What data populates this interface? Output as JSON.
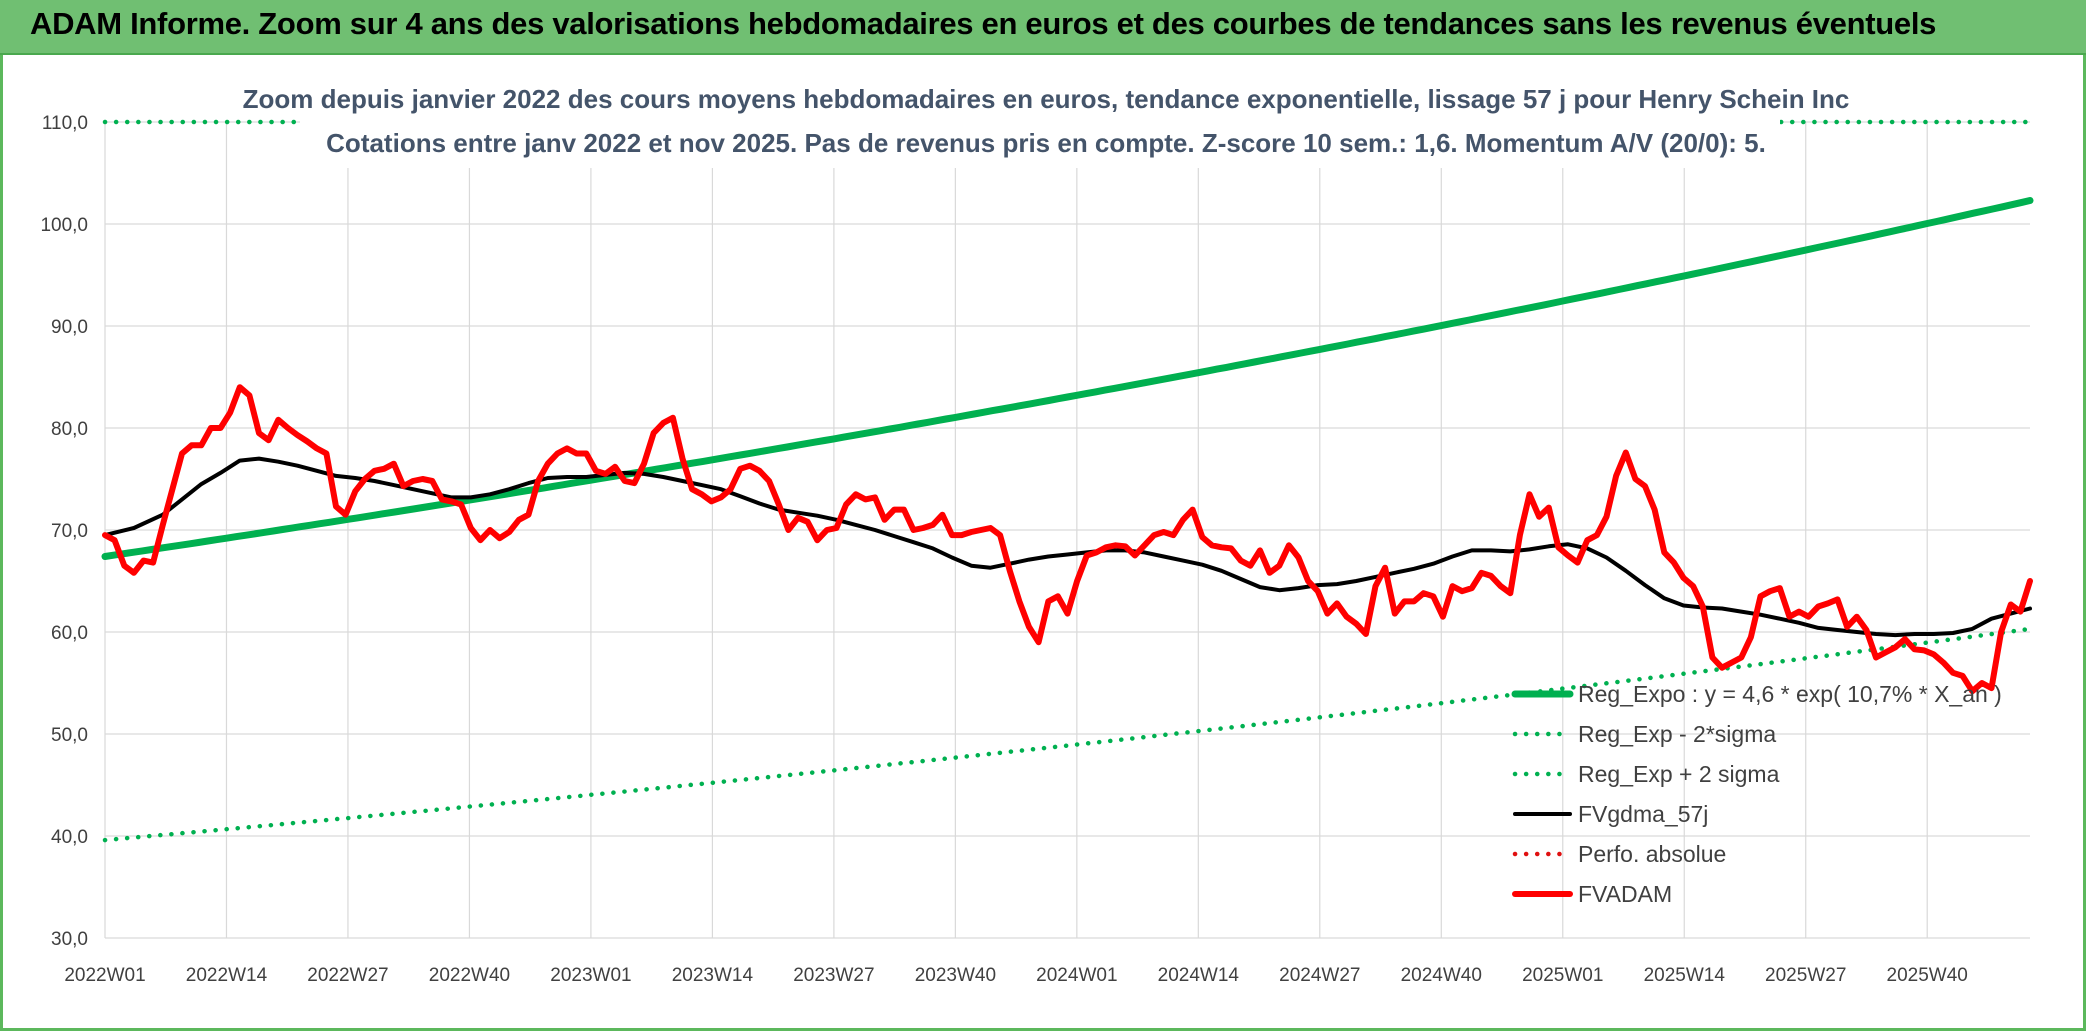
{
  "banner": {
    "title": "ADAM Informe. Zoom sur 4 ans des valorisations hebdomadaires en euros et des courbes de tendances sans les revenus éventuels"
  },
  "colors": {
    "banner": "#70bf72",
    "regExpo": "#00b050",
    "fvgdma": "#000000",
    "fvadam": "#ff0000",
    "perfo": "#e01010",
    "title": "#44546a",
    "grid": "#d9d9d9"
  },
  "chart_data": {
    "type": "line",
    "title": "Zoom depuis janvier 2022 des cours moyens hebdomadaires en euros, tendance exponentielle, lissage 57 j pour Henry Schein Inc",
    "subtitle": "Cotations entre janv 2022 et nov 2025. Pas de revenus pris en compte. Z-score 10 sem.: 1,6. Momentum A/V (20/0): 5.",
    "xlabel": "",
    "ylabel": "",
    "ylim": [
      30,
      110
    ],
    "y_ticks": [
      "30,0",
      "40,0",
      "50,0",
      "60,0",
      "70,0",
      "80,0",
      "90,0",
      "100,0",
      "110,0"
    ],
    "x_ticks": [
      "2022W01",
      "2022W14",
      "2022W27",
      "2022W40",
      "2023W01",
      "2023W14",
      "2023W27",
      "2023W40",
      "2024W01",
      "2024W14",
      "2024W27",
      "2024W40",
      "2025W01",
      "2025W14",
      "2025W27",
      "2025W40"
    ],
    "x_range_weeks": [
      0,
      206
    ],
    "grid": true,
    "legend_position": "bottom-right",
    "series": [
      {
        "name": "Reg_Expo : y = 4,6 * exp( 10,7% *  X_an )",
        "style": "solid-thick",
        "color": "#00b050",
        "kind": "exp",
        "start": 67.4,
        "end": 102.3
      },
      {
        "name": "Reg_Exp - 2*sigma",
        "style": "dotted",
        "color": "#00b050",
        "kind": "exp",
        "start": 39.6,
        "end": 60.3
      },
      {
        "name": "Reg_Exp + 2 sigma",
        "style": "dotted",
        "color": "#00b050",
        "kind": "exp",
        "start": 110.0,
        "end": 110.0
      },
      {
        "name": "FVgdma_57j",
        "style": "solid",
        "color": "#000000",
        "kind": "points",
        "points": [
          [
            0,
            69.5
          ],
          [
            3,
            70.2
          ],
          [
            6,
            71.5
          ],
          [
            8,
            73.0
          ],
          [
            10,
            74.5
          ],
          [
            12,
            75.6
          ],
          [
            14,
            76.8
          ],
          [
            16,
            77.0
          ],
          [
            18,
            76.7
          ],
          [
            20,
            76.3
          ],
          [
            22,
            75.8
          ],
          [
            24,
            75.3
          ],
          [
            26,
            75.1
          ],
          [
            28,
            74.8
          ],
          [
            30,
            74.4
          ],
          [
            32,
            74.0
          ],
          [
            34,
            73.6
          ],
          [
            36,
            73.2
          ],
          [
            38,
            73.2
          ],
          [
            40,
            73.5
          ],
          [
            42,
            74.0
          ],
          [
            44,
            74.6
          ],
          [
            46,
            75.1
          ],
          [
            48,
            75.2
          ],
          [
            50,
            75.2
          ],
          [
            52,
            75.4
          ],
          [
            54,
            75.6
          ],
          [
            56,
            75.5
          ],
          [
            58,
            75.2
          ],
          [
            60,
            74.8
          ],
          [
            62,
            74.4
          ],
          [
            64,
            74.0
          ],
          [
            66,
            73.3
          ],
          [
            68,
            72.6
          ],
          [
            70,
            72.0
          ],
          [
            72,
            71.7
          ],
          [
            74,
            71.4
          ],
          [
            76,
            71.0
          ],
          [
            78,
            70.5
          ],
          [
            80,
            70.0
          ],
          [
            82,
            69.4
          ],
          [
            84,
            68.8
          ],
          [
            86,
            68.2
          ],
          [
            88,
            67.3
          ],
          [
            90,
            66.5
          ],
          [
            92,
            66.3
          ],
          [
            94,
            66.7
          ],
          [
            96,
            67.1
          ],
          [
            98,
            67.4
          ],
          [
            100,
            67.6
          ],
          [
            102,
            67.8
          ],
          [
            104,
            68.0
          ],
          [
            106,
            68.0
          ],
          [
            108,
            67.8
          ],
          [
            110,
            67.4
          ],
          [
            112,
            67.0
          ],
          [
            114,
            66.6
          ],
          [
            116,
            66.0
          ],
          [
            118,
            65.2
          ],
          [
            120,
            64.4
          ],
          [
            122,
            64.1
          ],
          [
            124,
            64.3
          ],
          [
            126,
            64.6
          ],
          [
            128,
            64.7
          ],
          [
            130,
            65.0
          ],
          [
            132,
            65.4
          ],
          [
            134,
            65.8
          ],
          [
            136,
            66.2
          ],
          [
            138,
            66.7
          ],
          [
            140,
            67.4
          ],
          [
            142,
            68.0
          ],
          [
            144,
            68.0
          ],
          [
            146,
            67.9
          ],
          [
            148,
            68.1
          ],
          [
            150,
            68.4
          ],
          [
            152,
            68.6
          ],
          [
            154,
            68.2
          ],
          [
            156,
            67.3
          ],
          [
            158,
            66.0
          ],
          [
            160,
            64.6
          ],
          [
            162,
            63.3
          ],
          [
            164,
            62.6
          ],
          [
            166,
            62.4
          ],
          [
            168,
            62.3
          ],
          [
            170,
            62.0
          ],
          [
            172,
            61.7
          ],
          [
            174,
            61.3
          ],
          [
            176,
            60.9
          ],
          [
            178,
            60.4
          ],
          [
            180,
            60.2
          ],
          [
            182,
            60.0
          ],
          [
            184,
            59.8
          ],
          [
            186,
            59.7
          ],
          [
            188,
            59.8
          ],
          [
            190,
            59.8
          ],
          [
            192,
            59.9
          ],
          [
            194,
            60.3
          ],
          [
            196,
            61.3
          ],
          [
            198,
            61.8
          ],
          [
            200,
            62.3
          ]
        ]
      },
      {
        "name": "Perfo. absolue",
        "style": "dotted",
        "color": "#e01010",
        "kind": "none"
      },
      {
        "name": "FVADAM",
        "style": "solid-thick",
        "color": "#ff0000",
        "kind": "points",
        "points": [
          [
            0,
            69.5
          ],
          [
            1,
            69.0
          ],
          [
            2,
            66.5
          ],
          [
            3,
            65.8
          ],
          [
            4,
            67.0
          ],
          [
            5,
            66.8
          ],
          [
            6,
            70.5
          ],
          [
            7,
            74.0
          ],
          [
            8,
            77.5
          ],
          [
            9,
            78.3
          ],
          [
            10,
            78.3
          ],
          [
            11,
            80.0
          ],
          [
            12,
            80.0
          ],
          [
            13,
            81.5
          ],
          [
            14,
            84.0
          ],
          [
            15,
            83.2
          ],
          [
            16,
            79.5
          ],
          [
            17,
            78.8
          ],
          [
            18,
            80.8
          ],
          [
            19,
            80.0
          ],
          [
            20,
            79.3
          ],
          [
            21,
            78.7
          ],
          [
            22,
            78.0
          ],
          [
            23,
            77.5
          ],
          [
            24,
            72.3
          ],
          [
            25,
            71.5
          ],
          [
            26,
            73.8
          ],
          [
            27,
            75.0
          ],
          [
            28,
            75.8
          ],
          [
            29,
            76.0
          ],
          [
            30,
            76.5
          ],
          [
            31,
            74.3
          ],
          [
            32,
            74.8
          ],
          [
            33,
            75.0
          ],
          [
            34,
            74.8
          ],
          [
            35,
            73.0
          ],
          [
            36,
            72.8
          ],
          [
            37,
            72.5
          ],
          [
            38,
            70.2
          ],
          [
            39,
            69.0
          ],
          [
            40,
            70.0
          ],
          [
            41,
            69.2
          ],
          [
            42,
            69.8
          ],
          [
            43,
            71.0
          ],
          [
            44,
            71.5
          ],
          [
            45,
            74.8
          ],
          [
            46,
            76.5
          ],
          [
            47,
            77.5
          ],
          [
            48,
            78.0
          ],
          [
            49,
            77.5
          ],
          [
            50,
            77.5
          ],
          [
            51,
            75.8
          ],
          [
            52,
            75.5
          ],
          [
            53,
            76.2
          ],
          [
            54,
            74.8
          ],
          [
            55,
            74.6
          ],
          [
            56,
            76.5
          ],
          [
            57,
            79.5
          ],
          [
            58,
            80.5
          ],
          [
            59,
            81.0
          ],
          [
            60,
            77.0
          ],
          [
            61,
            74.0
          ],
          [
            62,
            73.5
          ],
          [
            63,
            72.8
          ],
          [
            64,
            73.2
          ],
          [
            65,
            74.0
          ],
          [
            66,
            76.0
          ],
          [
            67,
            76.3
          ],
          [
            68,
            75.8
          ],
          [
            69,
            74.8
          ],
          [
            70,
            72.5
          ],
          [
            71,
            70.0
          ],
          [
            72,
            71.2
          ],
          [
            73,
            70.8
          ],
          [
            74,
            69.0
          ],
          [
            75,
            70.0
          ],
          [
            76,
            70.2
          ],
          [
            77,
            72.5
          ],
          [
            78,
            73.5
          ],
          [
            79,
            73.0
          ],
          [
            80,
            73.2
          ],
          [
            81,
            71.0
          ],
          [
            82,
            72.0
          ],
          [
            83,
            72.0
          ],
          [
            84,
            70.0
          ],
          [
            85,
            70.2
          ],
          [
            86,
            70.5
          ],
          [
            87,
            71.5
          ],
          [
            88,
            69.5
          ],
          [
            89,
            69.5
          ],
          [
            90,
            69.8
          ],
          [
            91,
            70.0
          ],
          [
            92,
            70.2
          ],
          [
            93,
            69.5
          ],
          [
            94,
            66.0
          ],
          [
            95,
            63.0
          ],
          [
            96,
            60.5
          ],
          [
            97,
            59.0
          ],
          [
            98,
            63.0
          ],
          [
            99,
            63.5
          ],
          [
            100,
            61.8
          ],
          [
            101,
            65.0
          ],
          [
            102,
            67.5
          ],
          [
            103,
            67.8
          ],
          [
            104,
            68.3
          ],
          [
            105,
            68.5
          ],
          [
            106,
            68.4
          ],
          [
            107,
            67.5
          ],
          [
            108,
            68.5
          ],
          [
            109,
            69.5
          ],
          [
            110,
            69.8
          ],
          [
            111,
            69.5
          ],
          [
            112,
            71.0
          ],
          [
            113,
            72.0
          ],
          [
            114,
            69.3
          ],
          [
            115,
            68.5
          ],
          [
            116,
            68.3
          ],
          [
            117,
            68.2
          ],
          [
            118,
            67.0
          ],
          [
            119,
            66.5
          ],
          [
            120,
            68.0
          ],
          [
            121,
            65.8
          ],
          [
            122,
            66.5
          ],
          [
            123,
            68.5
          ],
          [
            124,
            67.3
          ],
          [
            125,
            65.0
          ],
          [
            126,
            64.0
          ],
          [
            127,
            61.8
          ],
          [
            128,
            62.8
          ],
          [
            129,
            61.5
          ],
          [
            130,
            60.8
          ],
          [
            131,
            59.8
          ],
          [
            132,
            64.5
          ],
          [
            133,
            66.3
          ],
          [
            134,
            61.8
          ],
          [
            135,
            63.0
          ],
          [
            136,
            63.0
          ],
          [
            137,
            63.8
          ],
          [
            138,
            63.5
          ],
          [
            139,
            61.5
          ],
          [
            140,
            64.5
          ],
          [
            141,
            64.0
          ],
          [
            142,
            64.3
          ],
          [
            143,
            65.8
          ],
          [
            144,
            65.5
          ],
          [
            145,
            64.5
          ],
          [
            146,
            63.8
          ],
          [
            147,
            69.5
          ],
          [
            148,
            73.5
          ],
          [
            149,
            71.3
          ],
          [
            150,
            72.2
          ],
          [
            151,
            68.3
          ],
          [
            152,
            67.5
          ],
          [
            153,
            66.8
          ],
          [
            154,
            69.0
          ],
          [
            155,
            69.5
          ],
          [
            156,
            71.3
          ],
          [
            157,
            75.3
          ],
          [
            158,
            77.6
          ],
          [
            159,
            75.0
          ],
          [
            160,
            74.3
          ],
          [
            161,
            72.0
          ],
          [
            162,
            67.8
          ],
          [
            163,
            66.8
          ],
          [
            164,
            65.3
          ],
          [
            165,
            64.5
          ],
          [
            166,
            62.5
          ],
          [
            167,
            57.5
          ],
          [
            168,
            56.5
          ],
          [
            169,
            57.0
          ],
          [
            170,
            57.5
          ],
          [
            171,
            59.5
          ],
          [
            172,
            63.5
          ],
          [
            173,
            64.0
          ],
          [
            174,
            64.3
          ],
          [
            175,
            61.5
          ],
          [
            176,
            62.0
          ],
          [
            177,
            61.5
          ],
          [
            178,
            62.5
          ],
          [
            179,
            62.8
          ],
          [
            180,
            63.2
          ],
          [
            181,
            60.5
          ],
          [
            182,
            61.5
          ],
          [
            183,
            60.2
          ],
          [
            184,
            57.5
          ],
          [
            185,
            58.0
          ],
          [
            186,
            58.5
          ],
          [
            187,
            59.3
          ],
          [
            188,
            58.3
          ],
          [
            189,
            58.2
          ],
          [
            190,
            57.8
          ],
          [
            191,
            57.0
          ],
          [
            192,
            56.0
          ],
          [
            193,
            55.7
          ],
          [
            194,
            54.2
          ],
          [
            195,
            55.0
          ],
          [
            196,
            54.5
          ],
          [
            197,
            60.0
          ],
          [
            198,
            62.7
          ],
          [
            199,
            62.0
          ],
          [
            200,
            65.0
          ]
        ]
      }
    ]
  }
}
